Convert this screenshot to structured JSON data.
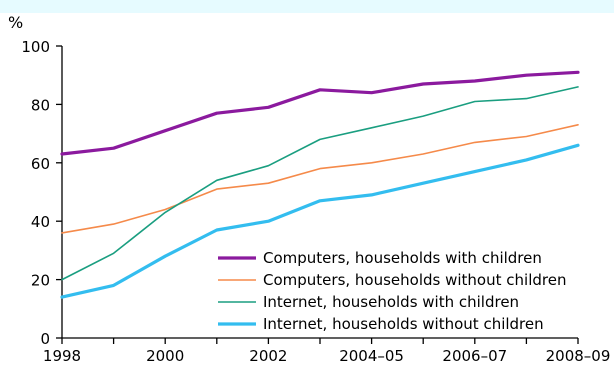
{
  "chart_data": {
    "type": "line",
    "y_unit_label": "%",
    "title": "",
    "xlabel": "",
    "ylabel": "%",
    "ylim": [
      0,
      100
    ],
    "y_ticks": [
      0,
      20,
      40,
      60,
      80,
      100
    ],
    "x": [
      "1998",
      "1999",
      "2000",
      "2001",
      "2002",
      "2003",
      "2004–05",
      "2005–06",
      "2006–07",
      "2007–08",
      "2008–09"
    ],
    "x_tick_labels": [
      "1998",
      "2000",
      "2002",
      "2004–05",
      "2006–07",
      "2008–09"
    ],
    "grid": false,
    "legend_position": "bottom-right",
    "series": [
      {
        "name": "Computers, households with children",
        "color": "#8b1a9e",
        "values": [
          63,
          65,
          71,
          77,
          79,
          85,
          84,
          87,
          88,
          90,
          91
        ]
      },
      {
        "name": "Computers, households without children",
        "color": "#f58a4a",
        "values": [
          36,
          39,
          44,
          51,
          53,
          58,
          60,
          63,
          67,
          69,
          73
        ]
      },
      {
        "name": "Internet, households with children",
        "color": "#1a9e80",
        "values": [
          20,
          29,
          43,
          54,
          59,
          68,
          72,
          76,
          81,
          82,
          86
        ]
      },
      {
        "name": "Internet, households without children",
        "color": "#33bdef",
        "values": [
          14,
          18,
          28,
          37,
          40,
          47,
          49,
          53,
          57,
          61,
          66
        ]
      }
    ]
  }
}
